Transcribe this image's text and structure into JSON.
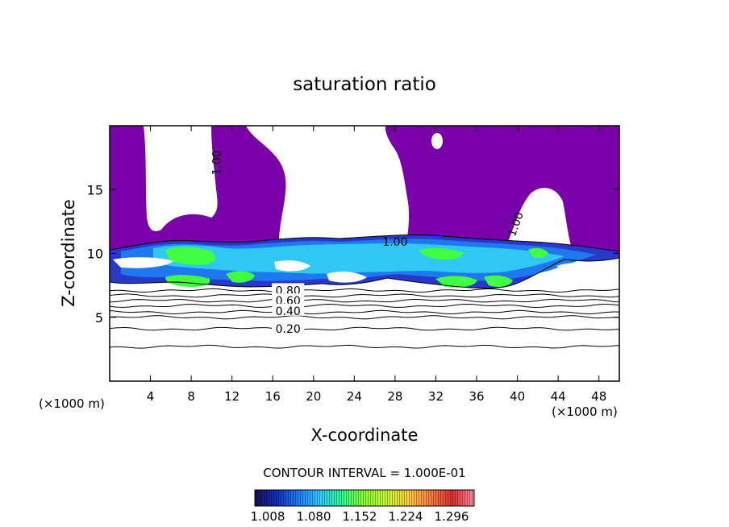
{
  "chart_data": {
    "type": "heatmap",
    "title": "saturation ratio",
    "xlabel": "X-coordinate",
    "ylabel": "Z-coordinate",
    "x_unit_left": "(×1000 m)",
    "x_unit_right": "(×1000 m)",
    "xlim": [
      0,
      50
    ],
    "ylim": [
      0,
      20
    ],
    "x_ticks": [
      4,
      8,
      12,
      16,
      20,
      24,
      28,
      32,
      36,
      40,
      44,
      48
    ],
    "y_ticks": [
      5,
      10,
      15
    ],
    "x_tick_labels": [
      "4",
      "8",
      "12",
      "16",
      "20",
      "24",
      "28",
      "32",
      "36",
      "40",
      "44",
      "48"
    ],
    "y_tick_labels": [
      "5",
      "10",
      "15"
    ],
    "contour_interval_text": "CONTOUR INTERVAL = 1.000E-01",
    "contour_labels": [
      {
        "text": "1.00",
        "x": 10.5,
        "y": 17.1,
        "angle": -90
      },
      {
        "text": "1.00",
        "x": 28.0,
        "y": 10.9,
        "angle": 0
      },
      {
        "text": "1.00",
        "x": 39.8,
        "y": 12.3,
        "angle": -70
      },
      {
        "text": "0.80",
        "x": 17.5,
        "y": 7.1,
        "angle": 0
      },
      {
        "text": "0.60",
        "x": 17.5,
        "y": 6.3,
        "angle": 0
      },
      {
        "text": "0.40",
        "x": 17.5,
        "y": 5.5,
        "angle": 0
      },
      {
        "text": "0.20",
        "x": 17.5,
        "y": 4.1,
        "angle": 0
      }
    ],
    "dry_contours": [
      {
        "level": 0.2,
        "y": 4.1
      },
      {
        "level": 0.3,
        "y": 2.7
      },
      {
        "level": 0.4,
        "y": 5.0
      },
      {
        "level": 0.5,
        "y": 5.4
      },
      {
        "level": 0.6,
        "y": 5.9
      },
      {
        "level": 0.7,
        "y": 6.3
      },
      {
        "level": 0.8,
        "y": 6.7
      },
      {
        "level": 0.9,
        "y": 7.1
      }
    ],
    "colorbar": {
      "colors": [
        "#1a1050",
        "#1030c0",
        "#2080ff",
        "#30d0ff",
        "#30ff90",
        "#90ff30",
        "#c8ff30",
        "#ffd040",
        "#ff8040",
        "#e03030",
        "#ff90a0"
      ],
      "tick_labels": [
        "1.008",
        "1.080",
        "1.152",
        "1.224",
        "1.296"
      ]
    },
    "color_saturated": "#7a00aa",
    "color_bright_green": "#40ff40"
  }
}
